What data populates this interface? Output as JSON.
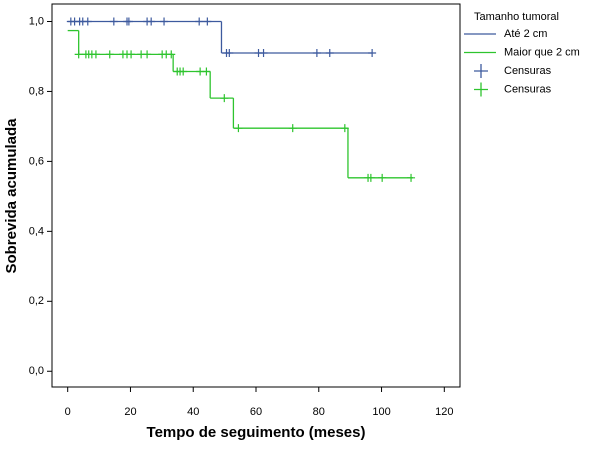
{
  "chart_data": {
    "type": "step",
    "x_label": "Tempo de seguimento (meses)",
    "y_label": "Sobrevida acumulada",
    "legend_title": "Tamanho tumoral",
    "xlim": [
      -5,
      125
    ],
    "ylim": [
      -0.045,
      1.05
    ],
    "xticks": [
      0,
      20,
      40,
      60,
      80,
      100,
      120
    ],
    "yticks": [
      {
        "value": 0,
        "label": "0,0"
      },
      {
        "value": 0.2,
        "label": "0,2"
      },
      {
        "value": 0.4,
        "label": "0,4"
      },
      {
        "value": 0.6,
        "label": "0,6"
      },
      {
        "value": 0.8,
        "label": "0,8"
      },
      {
        "value": 1,
        "label": "1,0"
      }
    ],
    "series": [
      {
        "name": "Até 2 cm",
        "color": "#3d5a9e",
        "kind": "line",
        "x": [
          0,
          49,
          97
        ],
        "values": [
          1,
          0.91,
          0.91
        ]
      },
      {
        "name": "Maior que 2 cm",
        "color": "#2ec42e",
        "kind": "line",
        "x": [
          0,
          3.5,
          33.6,
          45.4,
          52.8,
          89.3,
          110
        ],
        "values": [
          0.974,
          0.906,
          0.857,
          0.781,
          0.695,
          0.553,
          0.553
        ]
      },
      {
        "name": "Censuras",
        "color": "#3d5a9e",
        "kind": "censor",
        "x": [
          1,
          2.2,
          3.8,
          4.8,
          6.4,
          14.7,
          18.9,
          19.5,
          25.3,
          26.6,
          30.7,
          41.9,
          44.5,
          50.6,
          51.5,
          60.8,
          62.4,
          79.4,
          83.5,
          97
        ],
        "values": [
          1,
          1,
          1,
          1,
          1,
          1,
          1,
          1,
          1,
          1,
          1,
          1,
          1,
          0.91,
          0.91,
          0.91,
          0.91,
          0.91,
          0.91,
          0.91
        ]
      },
      {
        "name": "Censuras",
        "color": "#2ec42e",
        "kind": "censor",
        "x": [
          3.5,
          5.8,
          6.7,
          7.7,
          9,
          13.4,
          17.6,
          18.9,
          20.2,
          23.4,
          25.3,
          30.1,
          31.4,
          33,
          34.9,
          35.8,
          36.8,
          42.2,
          44.2,
          49.9,
          54.4,
          71.7,
          88.3,
          95.7,
          96.6,
          100.2,
          109.4
        ],
        "values": [
          0.906,
          0.906,
          0.906,
          0.906,
          0.906,
          0.906,
          0.906,
          0.906,
          0.906,
          0.906,
          0.906,
          0.906,
          0.906,
          0.906,
          0.857,
          0.857,
          0.857,
          0.857,
          0.857,
          0.781,
          0.695,
          0.695,
          0.695,
          0.553,
          0.553,
          0.553,
          0.553
        ]
      }
    ]
  }
}
